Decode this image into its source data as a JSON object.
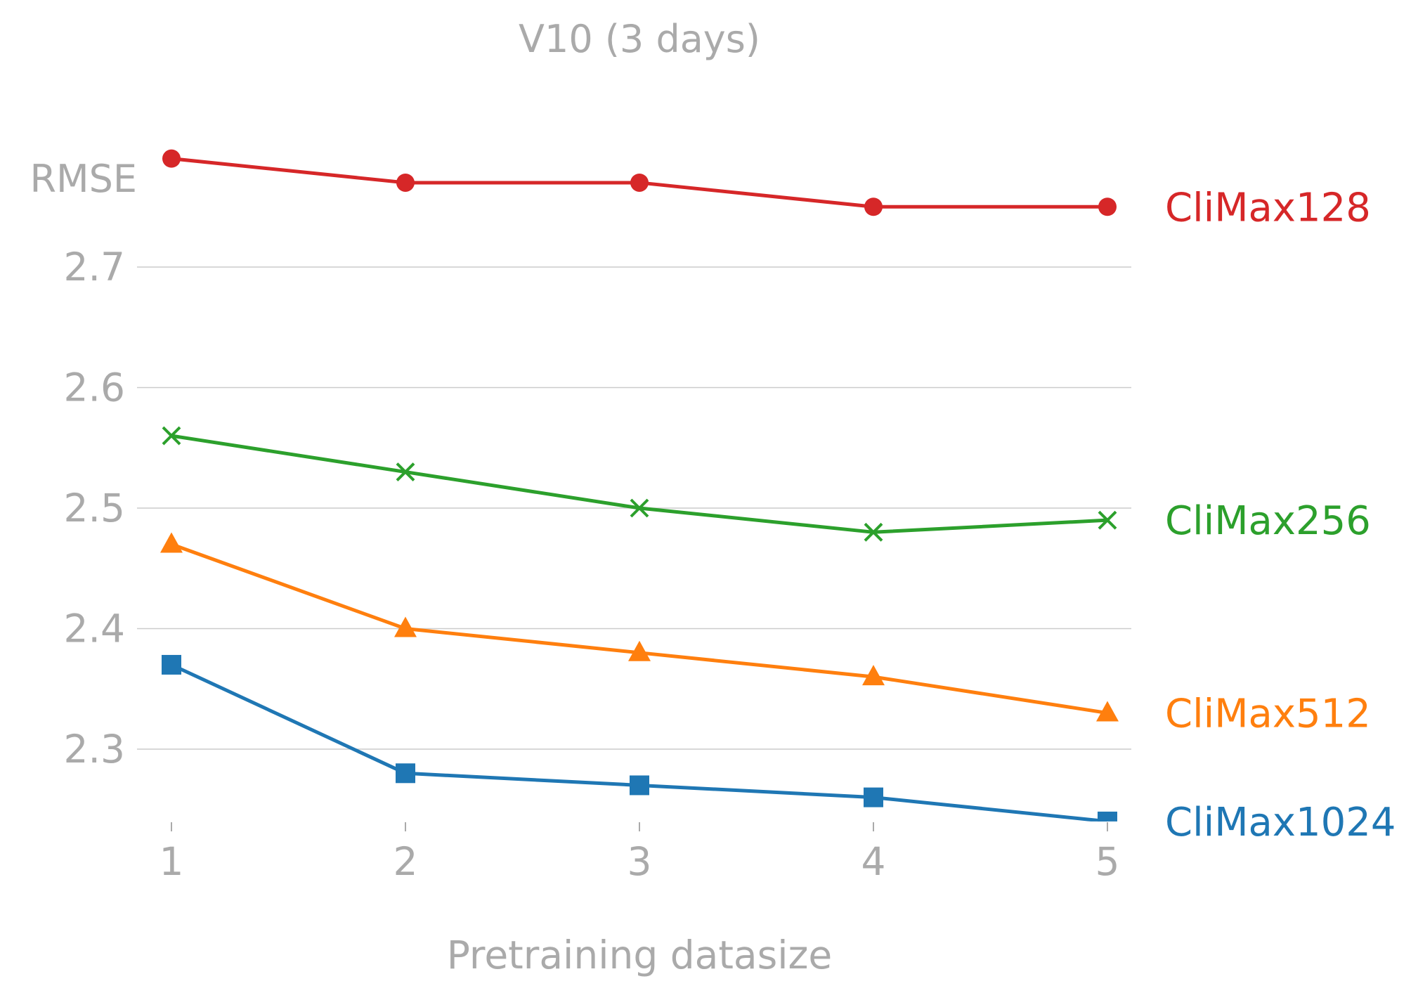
{
  "chart_data": {
    "type": "line",
    "title": "V10 (3 days)",
    "xlabel": "Pretraining datasize",
    "ylabel": "RMSE",
    "x": [
      1,
      2,
      3,
      4,
      5
    ],
    "x_ticks": [
      "1",
      "2",
      "3",
      "4",
      "5"
    ],
    "xlim": [
      0.85,
      5.1
    ],
    "ylim": [
      2.24,
      2.81
    ],
    "y_ticks": [
      "2.3",
      "2.4",
      "2.5",
      "2.6",
      "2.7"
    ],
    "y_tick_values": [
      2.3,
      2.4,
      2.5,
      2.6,
      2.7
    ],
    "grid": "horizontal",
    "legend": "direct labels at right end of lines",
    "series": [
      {
        "name": "CliMax128",
        "marker": "circle",
        "color": "#d62728",
        "values": [
          2.79,
          2.77,
          2.77,
          2.75,
          2.75
        ]
      },
      {
        "name": "CliMax256",
        "marker": "x",
        "color": "#2ca02c",
        "values": [
          2.56,
          2.53,
          2.5,
          2.48,
          2.49
        ]
      },
      {
        "name": "CliMax512",
        "marker": "triangle",
        "color": "#ff7f0e",
        "values": [
          2.47,
          2.4,
          2.38,
          2.36,
          2.33
        ]
      },
      {
        "name": "CliMax1024",
        "marker": "square",
        "color": "#1f77b4",
        "values": [
          2.37,
          2.28,
          2.27,
          2.26,
          2.24
        ]
      }
    ]
  }
}
